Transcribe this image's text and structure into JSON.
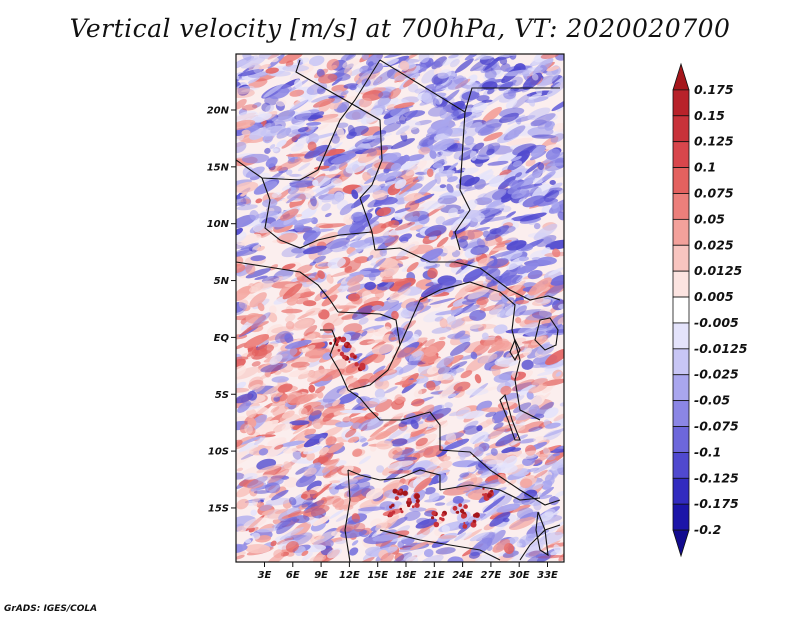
{
  "title": "Vertical velocity [m/s] at 700hPa, VT: 2020020700",
  "credit": "GrADS: IGES/COLA",
  "map": {
    "lat_labels": [
      "20N",
      "15N",
      "10N",
      "5N",
      "EQ",
      "5S",
      "10S",
      "15S"
    ],
    "lon_labels": [
      "3E",
      "6E",
      "9E",
      "12E",
      "15E",
      "18E",
      "21E",
      "24E",
      "27E",
      "30E",
      "33E"
    ]
  },
  "colorbar": {
    "labels": [
      "0.175",
      "0.15",
      "0.125",
      "0.1",
      "0.075",
      "0.05",
      "0.025",
      "0.0125",
      "0.005",
      "-0.005",
      "-0.0125",
      "-0.025",
      "-0.05",
      "-0.075",
      "-0.1",
      "-0.125",
      "-0.175",
      "-0.2"
    ],
    "colors": [
      "#a5161b",
      "#b8222a",
      "#c8323a",
      "#d8464c",
      "#e3615f",
      "#ec7f7b",
      "#f3a19b",
      "#f8c5c0",
      "#fce4e1",
      "#ffffff",
      "#e4e3fb",
      "#c8c6f5",
      "#a9a6ee",
      "#8b86e5",
      "#6d67db",
      "#5049cf",
      "#322bbf",
      "#1c15a8",
      "#120b8f"
    ]
  }
}
